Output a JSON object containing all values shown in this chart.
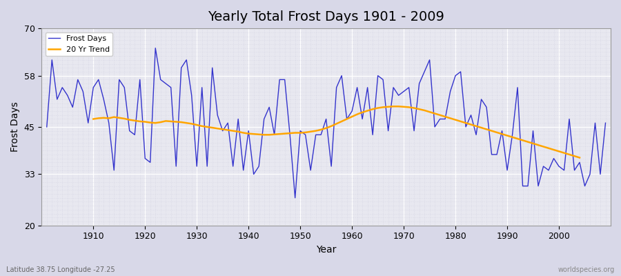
{
  "title": "Yearly Total Frost Days 1901 - 2009",
  "xlabel": "Year",
  "ylabel": "Frost Days",
  "lat_lon_label": "Latitude 38.75 Longitude -27.25",
  "watermark": "worldspecies.org",
  "legend_frost": "Frost Days",
  "legend_trend": "20 Yr Trend",
  "frost_color": "#3333cc",
  "trend_color": "#FFA500",
  "bg_color": "#e8e8f0",
  "grid_color": "#ffffff",
  "ylim": [
    20,
    70
  ],
  "yticks": [
    20,
    33,
    45,
    58,
    70
  ],
  "start_year": 1901,
  "end_year": 2009,
  "frost_days": [
    45,
    62,
    52,
    55,
    53,
    50,
    57,
    54,
    46,
    55,
    57,
    52,
    46,
    34,
    57,
    55,
    44,
    43,
    57,
    37,
    36,
    65,
    57,
    56,
    55,
    35,
    60,
    62,
    53,
    35,
    55,
    35,
    60,
    48,
    44,
    46,
    35,
    47,
    34,
    44,
    33,
    35,
    47,
    50,
    43,
    57,
    57,
    43,
    27,
    44,
    43,
    34,
    43,
    43,
    47,
    35,
    55,
    58,
    47,
    49,
    55,
    47,
    55,
    43,
    58,
    57,
    44,
    55,
    53,
    54,
    55,
    44,
    56,
    59,
    62,
    45,
    47,
    47,
    54,
    58,
    59,
    45,
    48,
    43,
    52,
    50,
    38,
    38,
    44,
    34,
    43,
    55,
    30,
    30,
    44,
    30,
    35,
    34,
    37,
    35,
    34,
    47,
    34,
    36,
    30,
    33,
    46,
    33,
    46
  ],
  "trend_years": [
    1910,
    1911,
    1912,
    1913,
    1914,
    1915,
    1916,
    1917,
    1918,
    1919,
    1920,
    1921,
    1922,
    1923,
    1924,
    1925,
    1926,
    1927,
    1928,
    1929,
    1930,
    1931,
    1932,
    1933,
    1934,
    1935,
    1936,
    1937,
    1938,
    1939,
    1940,
    1941,
    1942,
    1943,
    1944,
    1945,
    1946,
    1947,
    1948,
    1949,
    1950,
    1951,
    1952,
    1953,
    1954,
    1955,
    1956,
    1957,
    1958,
    1959,
    1960,
    1961,
    1962,
    1963,
    1964,
    1965,
    1966,
    1967,
    1968,
    1969,
    1970,
    1971,
    1972,
    1973,
    1974,
    1975,
    1976,
    1977,
    1978,
    1979,
    1980,
    1981,
    1982,
    1983,
    1984,
    1985,
    1986,
    1987,
    1988,
    1989,
    1990,
    1991,
    1992,
    1993,
    1994,
    1995,
    1996,
    1997,
    1998,
    1999,
    2000,
    2001,
    2002,
    2003,
    2004
  ],
  "trend_vals": [
    47.0,
    47.2,
    47.3,
    47.2,
    47.5,
    47.3,
    47.1,
    46.8,
    46.6,
    46.4,
    46.3,
    46.1,
    46.0,
    46.2,
    46.5,
    46.4,
    46.3,
    46.2,
    46.0,
    45.8,
    45.5,
    45.2,
    45.0,
    44.8,
    44.6,
    44.4,
    44.2,
    44.0,
    43.8,
    43.5,
    43.3,
    43.2,
    43.1,
    43.0,
    43.0,
    43.1,
    43.2,
    43.3,
    43.4,
    43.5,
    43.5,
    43.6,
    43.8,
    44.0,
    44.3,
    44.7,
    45.2,
    45.8,
    46.4,
    47.0,
    47.6,
    48.2,
    48.7,
    49.1,
    49.5,
    49.8,
    50.0,
    50.1,
    50.2,
    50.2,
    50.1,
    50.0,
    49.8,
    49.5,
    49.2,
    48.8,
    48.4,
    48.0,
    47.6,
    47.2,
    46.8,
    46.4,
    46.0,
    45.6,
    45.2,
    44.8,
    44.4,
    44.0,
    43.6,
    43.2,
    42.8,
    42.4,
    42.0,
    41.6,
    41.2,
    40.8,
    40.4,
    40.0,
    39.6,
    39.2,
    38.8,
    38.4,
    38.0,
    37.6,
    37.2
  ]
}
